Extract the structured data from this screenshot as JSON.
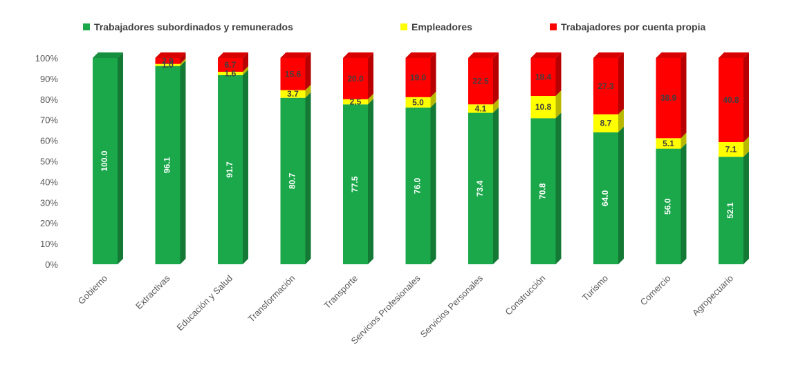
{
  "chart_data": {
    "type": "bar",
    "stacked": true,
    "percent": true,
    "categories": [
      "Gobierno",
      "Extractivas",
      "Educación y Salud",
      "Transformación",
      "Transporte",
      "Servicios Profesionales",
      "Servicios Personales",
      "Construcción",
      "Turismo",
      "Comercio",
      "Agropecuario"
    ],
    "series": [
      {
        "name": "Trabajadores subordinados y remunerados",
        "color": "#1aa84a",
        "values": [
          100.0,
          96.1,
          91.7,
          80.7,
          77.5,
          76.0,
          73.4,
          70.8,
          64.0,
          56.0,
          52.1
        ]
      },
      {
        "name": "Empleadores",
        "color": "#ffff00",
        "values": [
          0.0,
          1.0,
          1.6,
          3.7,
          2.5,
          5.0,
          4.1,
          10.8,
          8.7,
          5.1,
          7.1
        ]
      },
      {
        "name": "Trabajadores por cuenta propia",
        "color": "#ff0000",
        "values": [
          0.0,
          2.9,
          6.7,
          15.6,
          20.0,
          19.0,
          22.5,
          18.4,
          27.3,
          38.9,
          40.8
        ]
      }
    ],
    "y_ticks": [
      "0%",
      "10%",
      "20%",
      "30%",
      "40%",
      "50%",
      "60%",
      "70%",
      "80%",
      "90%",
      "100%"
    ],
    "ylim": [
      0,
      100
    ],
    "legend_position": "top",
    "grid": false,
    "title": "",
    "xlabel": "",
    "ylabel": ""
  }
}
